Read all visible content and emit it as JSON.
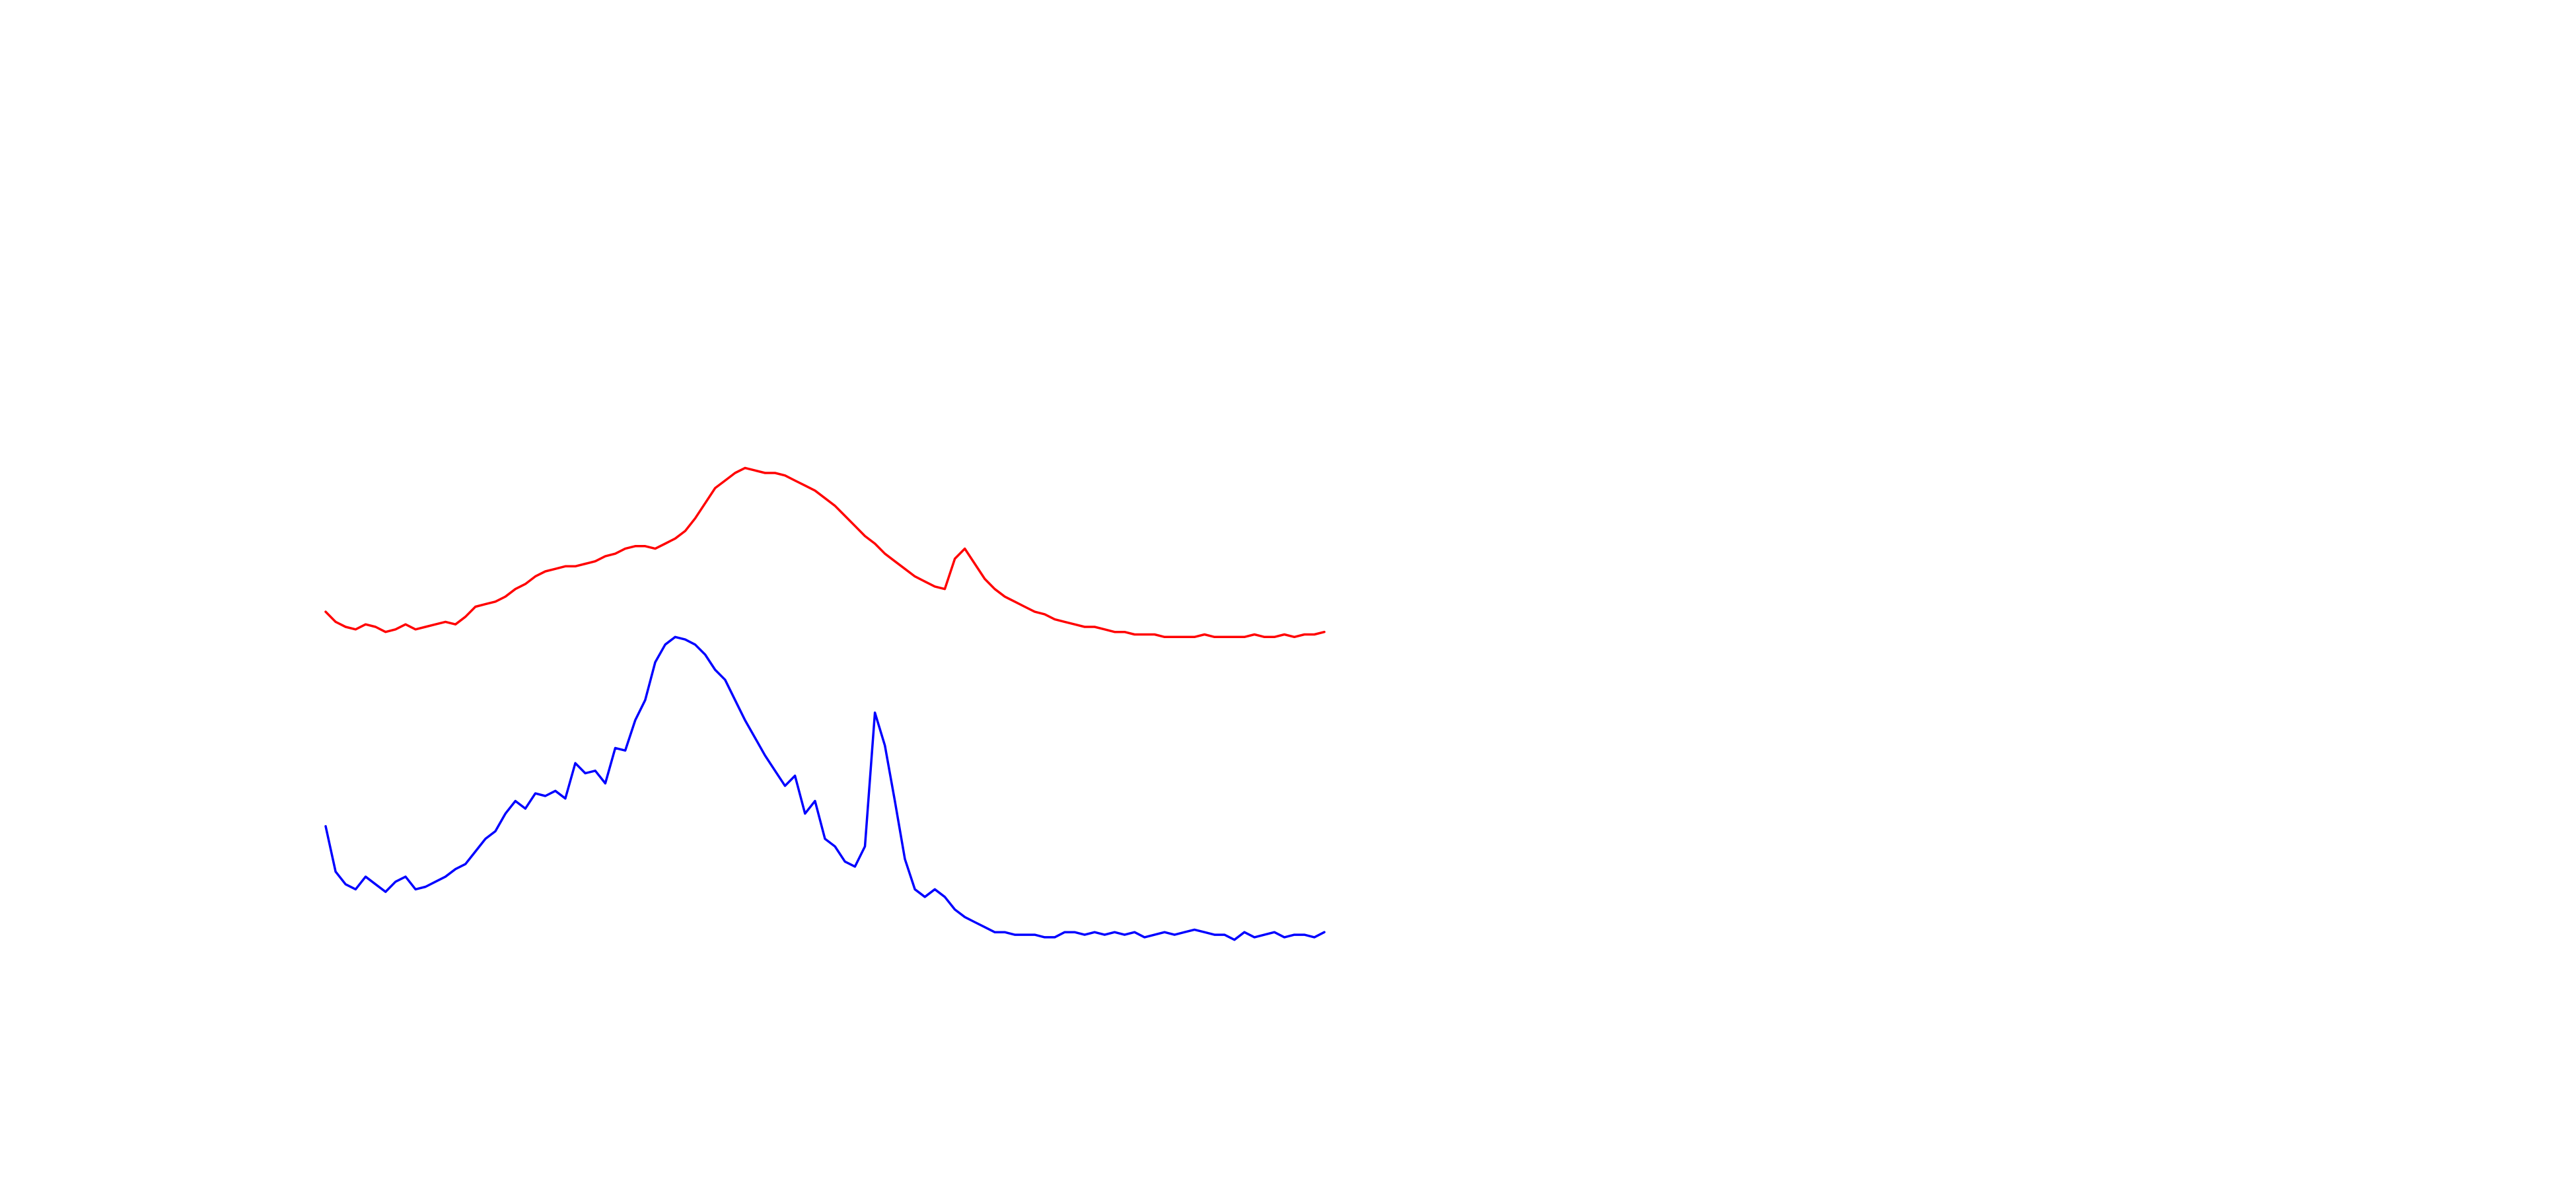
{
  "chart_data": {
    "type": "line",
    "title": "",
    "xlabel": "",
    "ylabel": "",
    "axes_visible": false,
    "grid": false,
    "legend": "none",
    "xlim": [
      0,
      100
    ],
    "ylim": [
      -16,
      9
    ],
    "series": [
      {
        "color": "#ff0000",
        "x": [
          0,
          1,
          2,
          3,
          4,
          5,
          6,
          7,
          8,
          9,
          10,
          11,
          12,
          13,
          14,
          15,
          16,
          17,
          18,
          19,
          20,
          21,
          22,
          23,
          24,
          25,
          26,
          27,
          28,
          29,
          30,
          31,
          32,
          33,
          34,
          35,
          36,
          37,
          38,
          39,
          40,
          41,
          42,
          43,
          44,
          45,
          46,
          47,
          48,
          49,
          50,
          51,
          52,
          53,
          54,
          55,
          56,
          57,
          58,
          59,
          60,
          61,
          62,
          63,
          64,
          65,
          66,
          67,
          68,
          69,
          70,
          71,
          72,
          73,
          74,
          75,
          76,
          77,
          78,
          79,
          80,
          81,
          82,
          83,
          84,
          85,
          86,
          87,
          88,
          89,
          90,
          91,
          92,
          93,
          94,
          95,
          96,
          97,
          98,
          99,
          100
        ],
        "values": [
          -1.5,
          -1.9,
          -2.1,
          -2.2,
          -2.0,
          -2.1,
          -2.3,
          -2.2,
          -2.0,
          -2.2,
          -2.1,
          -2.0,
          -1.9,
          -2.0,
          -1.7,
          -1.3,
          -1.2,
          -1.1,
          -0.9,
          -0.6,
          -0.4,
          -0.1,
          0.1,
          0.2,
          0.3,
          0.3,
          0.4,
          0.5,
          0.7,
          0.8,
          1.0,
          1.1,
          1.1,
          1.0,
          1.2,
          1.4,
          1.7,
          2.2,
          2.8,
          3.4,
          3.7,
          4.0,
          4.2,
          4.1,
          4.0,
          4.0,
          3.9,
          3.7,
          3.5,
          3.3,
          3.0,
          2.7,
          2.3,
          1.9,
          1.5,
          1.2,
          0.8,
          0.5,
          0.2,
          -0.1,
          -0.3,
          -0.5,
          -0.6,
          0.6,
          1.0,
          0.4,
          -0.2,
          -0.6,
          -0.9,
          -1.1,
          -1.3,
          -1.5,
          -1.6,
          -1.8,
          -1.9,
          -2.0,
          -2.1,
          -2.1,
          -2.2,
          -2.3,
          -2.3,
          -2.4,
          -2.4,
          -2.4,
          -2.5,
          -2.5,
          -2.5,
          -2.5,
          -2.4,
          -2.5,
          -2.5,
          -2.5,
          -2.5,
          -2.4,
          -2.5,
          -2.5,
          -2.4,
          -2.5,
          -2.4,
          -2.4,
          -2.3
        ]
      },
      {
        "color": "#0000ff",
        "x": [
          0,
          1,
          2,
          3,
          4,
          5,
          6,
          7,
          8,
          9,
          10,
          11,
          12,
          13,
          14,
          15,
          16,
          17,
          18,
          19,
          20,
          21,
          22,
          23,
          24,
          25,
          26,
          27,
          28,
          29,
          30,
          31,
          32,
          33,
          34,
          35,
          36,
          37,
          38,
          39,
          40,
          41,
          42,
          43,
          44,
          45,
          46,
          47,
          48,
          49,
          50,
          51,
          52,
          53,
          54,
          55,
          56,
          57,
          58,
          59,
          60,
          61,
          62,
          63,
          64,
          65,
          66,
          67,
          68,
          69,
          70,
          71,
          72,
          73,
          74,
          75,
          76,
          77,
          78,
          79,
          80,
          81,
          82,
          83,
          84,
          85,
          86,
          87,
          88,
          89,
          90,
          91,
          92,
          93,
          94,
          95,
          96,
          97,
          98,
          99,
          100
        ],
        "values": [
          -10.0,
          -11.8,
          -12.3,
          -12.5,
          -12.0,
          -12.3,
          -12.6,
          -12.2,
          -12.0,
          -12.5,
          -12.4,
          -12.2,
          -12.0,
          -11.7,
          -11.5,
          -11.0,
          -10.5,
          -10.2,
          -9.5,
          -9.0,
          -9.3,
          -8.7,
          -8.8,
          -8.6,
          -8.9,
          -7.5,
          -7.9,
          -7.8,
          -8.3,
          -6.9,
          -7.0,
          -5.8,
          -5.0,
          -3.5,
          -2.8,
          -2.5,
          -2.6,
          -2.8,
          -3.2,
          -3.8,
          -4.2,
          -5.0,
          -5.8,
          -6.5,
          -7.2,
          -7.8,
          -8.4,
          -8.0,
          -9.5,
          -9.0,
          -10.5,
          -10.8,
          -11.4,
          -11.6,
          -10.8,
          -5.5,
          -6.8,
          -9.0,
          -11.3,
          -12.5,
          -12.8,
          -12.5,
          -12.8,
          -13.3,
          -13.6,
          -13.8,
          -14.0,
          -14.2,
          -14.2,
          -14.3,
          -14.3,
          -14.3,
          -14.4,
          -14.4,
          -14.2,
          -14.2,
          -14.3,
          -14.2,
          -14.3,
          -14.2,
          -14.3,
          -14.2,
          -14.4,
          -14.3,
          -14.2,
          -14.3,
          -14.2,
          -14.1,
          -14.2,
          -14.3,
          -14.3,
          -14.5,
          -14.2,
          -14.4,
          -14.3,
          -14.2,
          -14.4,
          -14.3,
          -14.3,
          -14.4,
          -14.2
        ]
      }
    ]
  }
}
